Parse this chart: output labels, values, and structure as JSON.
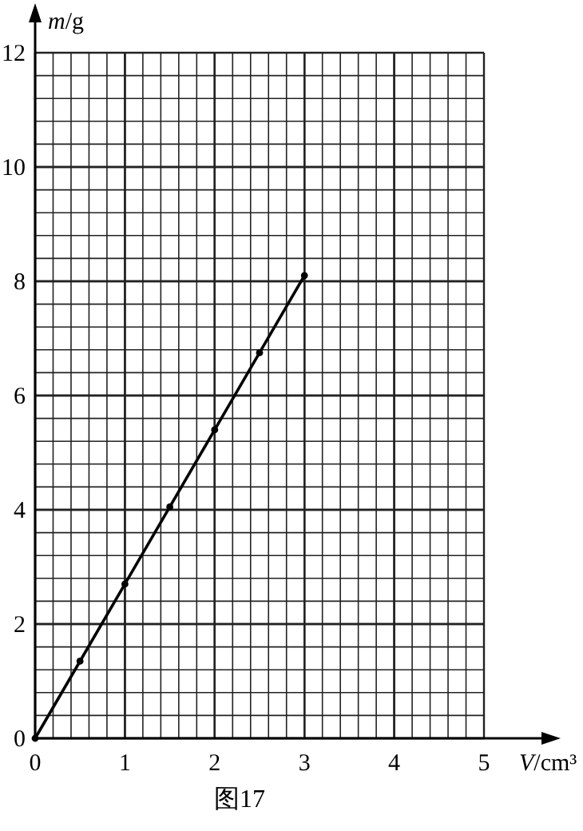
{
  "chart_data": {
    "type": "line",
    "x": [
      0,
      0.5,
      1,
      1.5,
      2,
      2.5,
      3
    ],
    "series": [
      {
        "color": "#000000",
        "values": [
          0,
          1.35,
          2.7,
          4.05,
          5.4,
          6.75,
          8.1
        ]
      }
    ],
    "xlim": [
      0,
      5
    ],
    "ylim": [
      0,
      12
    ],
    "xticks": [
      0,
      1,
      2,
      3,
      4,
      5
    ],
    "yticks": [
      0,
      2,
      4,
      6,
      8,
      10,
      12
    ],
    "xlabel": "V/cm³",
    "ylabel": "m/g",
    "grid": true,
    "marker": "circle",
    "line_style": "solid",
    "annotations": [
      "图17"
    ]
  }
}
